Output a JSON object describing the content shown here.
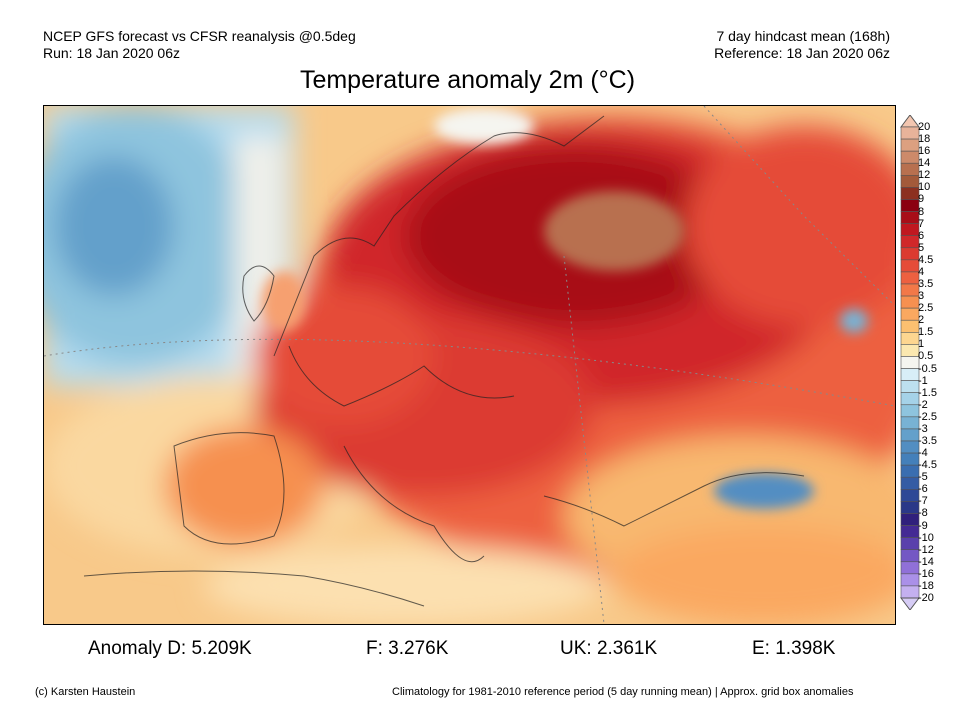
{
  "header": {
    "left_line1": "NCEP GFS forecast vs CFSR reanalysis @0.5deg",
    "left_line2": "Run: 18 Jan 2020 06z",
    "right_line1": "7 day hindcast mean (168h)",
    "right_line2": "Reference: 18 Jan 2020 06z"
  },
  "title": "Temperature anomaly 2m (°C)",
  "colorbar": {
    "labels": [
      "20",
      "18",
      "16",
      "14",
      "12",
      "10",
      "9",
      "8",
      "7",
      "6",
      "5",
      "4.5",
      "4",
      "3.5",
      "3",
      "2.5",
      "2",
      "1.5",
      "1",
      "0.5",
      "-0.5",
      "-1",
      "-1.5",
      "-2",
      "-2.5",
      "-3",
      "-3.5",
      "-4",
      "-4.5",
      "-5",
      "-6",
      "-7",
      "-8",
      "-9",
      "-10",
      "-12",
      "-14",
      "-16",
      "-18",
      "-20"
    ],
    "colors": [
      "#f3c6b0",
      "#e8b39a",
      "#dca080",
      "#cd8a6a",
      "#b8704f",
      "#a35a3a",
      "#8c3020",
      "#8b0010",
      "#a80e18",
      "#c01820",
      "#d0282a",
      "#dc3a30",
      "#e54c38",
      "#ed6040",
      "#f27848",
      "#f69050",
      "#faa860",
      "#fcc070",
      "#fdd690",
      "#fbe8b0",
      "#f5f5f0",
      "#d8eef8",
      "#bde0ef",
      "#a5d2e8",
      "#8ec4de",
      "#78b2d4",
      "#64a0cb",
      "#528ec2",
      "#4480ba",
      "#3a6eb0",
      "#345ca4",
      "#2e4896",
      "#2a3888",
      "#30207c",
      "#442a94",
      "#5a40ac",
      "#7458c4",
      "#9070d8",
      "#aa90e8",
      "#c4b0f0",
      "#d6ccf5"
    ]
  },
  "anomalies": [
    {
      "label": "Anomaly D: 5.209K"
    },
    {
      "label": "F: 3.276K"
    },
    {
      "label": "UK: 2.361K"
    },
    {
      "label": "E: 1.398K"
    }
  ],
  "footer": {
    "credit": "(c) Karsten Haustein",
    "note": "Climatology for 1981-2010 reference period (5 day running mean) | Approx. grid box anomalies"
  }
}
